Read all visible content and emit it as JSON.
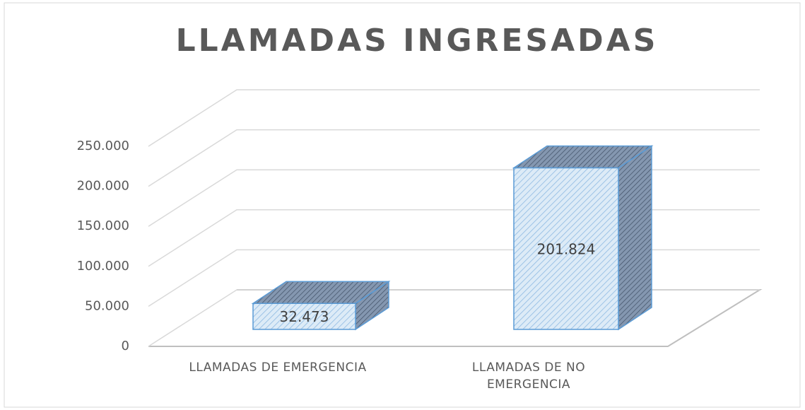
{
  "chart_data": {
    "type": "bar3d",
    "title": "LLAMADAS INGRESADAS",
    "categories": [
      "LLAMADAS DE EMERGENCIA",
      "LLAMADAS DE NO EMERGENCIA"
    ],
    "values": [
      32473,
      201824
    ],
    "value_labels": [
      "32.473",
      "201.824"
    ],
    "color": "#bdd7ee",
    "ylim": [
      0,
      250000
    ],
    "yticks": [
      0,
      {
        "value": 50000,
        "label": "50.000"
      },
      {
        "value": 100000,
        "label": "100.000"
      },
      {
        "value": 150000,
        "label": "150.000"
      },
      {
        "value": 200000,
        "label": "200.000"
      },
      {
        "value": 250000,
        "label": "250.000"
      }
    ],
    "grid": true
  }
}
